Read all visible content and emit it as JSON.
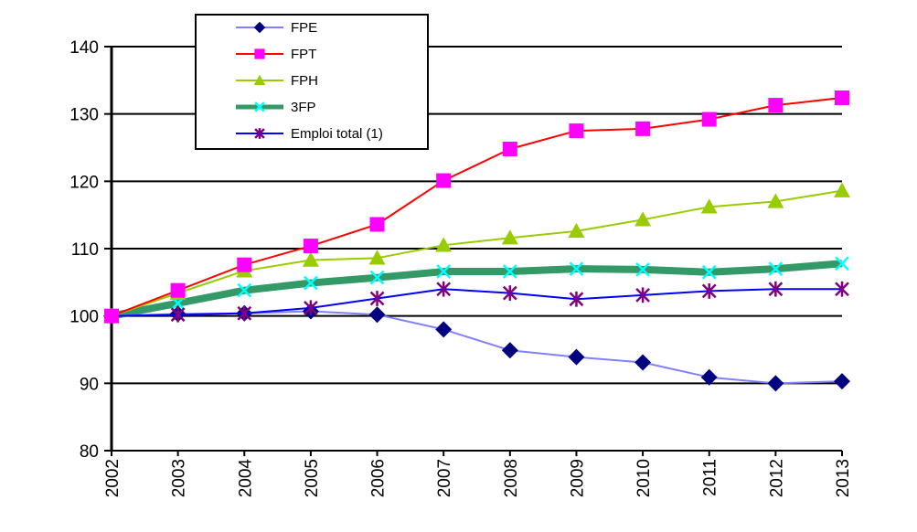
{
  "chart_data": {
    "type": "line",
    "title": "",
    "xlabel": "",
    "ylabel": "",
    "x": [
      "2002",
      "2003",
      "2004",
      "2005",
      "2006",
      "2007",
      "2008",
      "2009",
      "2010",
      "2011",
      "2012",
      "2013"
    ],
    "ylim": [
      80,
      140
    ],
    "yticks": [
      "80",
      "90",
      "100",
      "110",
      "120",
      "130",
      "140"
    ],
    "grid": "horizontal",
    "legend_position": "top-left",
    "series": [
      {
        "name": "FPE",
        "color": "#8080ff",
        "marker": "diamond",
        "marker_color": "#000080",
        "values": [
          100,
          100.3,
          100.4,
          100.7,
          100.2,
          98.0,
          94.9,
          93.9,
          93.1,
          90.9,
          90.0,
          90.3
        ]
      },
      {
        "name": "FPT",
        "color": "#ff0000",
        "marker": "square",
        "marker_color": "#ff00ff",
        "values": [
          100,
          103.8,
          107.6,
          110.4,
          113.6,
          120.1,
          124.8,
          127.5,
          127.8,
          129.2,
          131.3,
          132.4
        ]
      },
      {
        "name": "FPH",
        "color": "#99cc00",
        "marker": "triangle",
        "marker_color": "#99cc00",
        "values": [
          100,
          103.4,
          106.7,
          108.3,
          108.6,
          110.5,
          111.6,
          112.6,
          114.3,
          116.2,
          117.0,
          118.6
        ]
      },
      {
        "name": "3FP",
        "color": "#339966",
        "marker": "x",
        "marker_color": "#00ffff",
        "values": [
          100,
          101.9,
          103.8,
          104.9,
          105.7,
          106.6,
          106.6,
          107.0,
          106.9,
          106.5,
          107.0,
          107.8
        ]
      },
      {
        "name": "Emploi total (1)",
        "color": "#0000ff",
        "marker": "asterisk",
        "marker_color": "#800080",
        "values": [
          100,
          100.2,
          100.4,
          101.2,
          102.6,
          104.0,
          103.4,
          102.5,
          103.1,
          103.7,
          104.0,
          104.0
        ]
      }
    ]
  }
}
